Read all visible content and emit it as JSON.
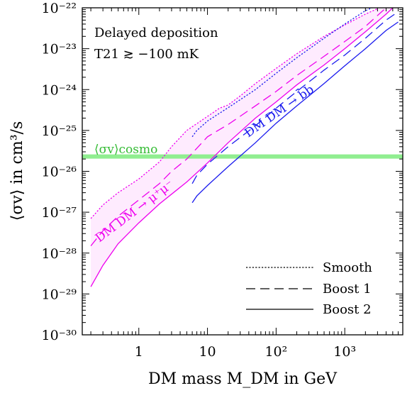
{
  "chart_data": {
    "type": "line",
    "xscale": "log",
    "yscale": "log",
    "xlim": [
      0.15,
      7000
    ],
    "ylim": [
      1e-30,
      1e-22
    ],
    "xlabel": "DM mass M_DM in GeV",
    "ylabel": "⟨σv⟩ in cm³/s",
    "x_ticks": [
      {
        "value": 1,
        "label": "1"
      },
      {
        "value": 10,
        "label": "10"
      },
      {
        "value": 100,
        "label": "10²"
      },
      {
        "value": 1000,
        "label": "10³"
      }
    ],
    "y_ticks": [
      {
        "value": 1e-30,
        "label": "10⁻³⁰"
      },
      {
        "value": 1e-29,
        "label": "10⁻²⁹"
      },
      {
        "value": 1e-28,
        "label": "10⁻²⁸"
      },
      {
        "value": 1e-27,
        "label": "10⁻²⁷"
      },
      {
        "value": 1e-26,
        "label": "10⁻²⁶"
      },
      {
        "value": 1e-25,
        "label": "10⁻²⁵"
      },
      {
        "value": 1e-24,
        "label": "10⁻²⁴"
      },
      {
        "value": 1e-23,
        "label": "10⁻²³"
      },
      {
        "value": 1e-22,
        "label": "10⁻²²"
      }
    ],
    "note_lines": [
      "Delayed deposition",
      "T21 ≳ −100 mK"
    ],
    "cosmo_line": {
      "label": "⟨σv⟩cosmo",
      "value": 2.3e-26,
      "color": "#90ee90",
      "label_color": "#33bb33"
    },
    "annotations": [
      {
        "text": "DM DM → μ⁺μ⁻",
        "color": "#ee00ee"
      },
      {
        "text": "DM DM → b̄b",
        "color": "#1a1aee"
      }
    ],
    "legend": {
      "position": "bottom-right",
      "entries": [
        {
          "label": "Smooth",
          "style": "dotted"
        },
        {
          "label": "Boost 1",
          "style": "dashed"
        },
        {
          "label": "Boost 2",
          "style": "solid"
        }
      ]
    },
    "series": [
      {
        "channel": "mu",
        "style": "dotted",
        "color": "#ee00ee",
        "points": [
          [
            0.2,
            7e-28
          ],
          [
            0.3,
            1.5e-27
          ],
          [
            0.5,
            3e-27
          ],
          [
            1,
            6.5e-27
          ],
          [
            2,
            1.7e-26
          ],
          [
            3,
            4e-26
          ],
          [
            5,
            1e-25
          ],
          [
            10,
            2.2e-25
          ],
          [
            15,
            3.5e-25
          ],
          [
            20,
            4.2e-25
          ],
          [
            30,
            7e-25
          ],
          [
            50,
            1.4e-24
          ],
          [
            100,
            3.3e-24
          ],
          [
            200,
            7.5e-24
          ],
          [
            500,
            2e-23
          ],
          [
            1000,
            3.8e-23
          ],
          [
            2000,
            7e-23
          ],
          [
            3000,
            9.5e-23
          ]
        ]
      },
      {
        "channel": "mu",
        "style": "dashed",
        "color": "#ee00ee",
        "points": [
          [
            0.2,
            1.5e-28
          ],
          [
            0.3,
            3.5e-28
          ],
          [
            0.5,
            8e-28
          ],
          [
            1,
            2e-27
          ],
          [
            2,
            5e-27
          ],
          [
            3,
            1e-26
          ],
          [
            5,
            2e-26
          ],
          [
            10,
            7e-26
          ],
          [
            20,
            1.4e-25
          ],
          [
            50,
            4e-25
          ],
          [
            100,
            9e-25
          ],
          [
            200,
            2.2e-24
          ],
          [
            500,
            6.5e-24
          ],
          [
            1000,
            1.5e-23
          ],
          [
            2000,
            3.5e-23
          ],
          [
            3000,
            6.5e-23
          ],
          [
            4000,
            1e-22
          ]
        ]
      },
      {
        "channel": "mu",
        "style": "solid",
        "color": "#ee00ee",
        "points": [
          [
            0.2,
            1.5e-29
          ],
          [
            0.3,
            5e-29
          ],
          [
            0.5,
            1.7e-28
          ],
          [
            1,
            5.5e-28
          ],
          [
            2,
            1.6e-27
          ],
          [
            5,
            5.5e-27
          ],
          [
            10,
            1.6e-26
          ],
          [
            20,
            5e-26
          ],
          [
            50,
            2e-25
          ],
          [
            100,
            5e-25
          ],
          [
            200,
            1.3e-24
          ],
          [
            500,
            4e-24
          ],
          [
            1000,
            1e-23
          ],
          [
            2000,
            2.6e-23
          ],
          [
            4000,
            7e-23
          ],
          [
            5000,
            1e-22
          ]
        ]
      },
      {
        "channel": "b",
        "style": "dotted",
        "color": "#1a1aee",
        "points": [
          [
            6,
            7e-26
          ],
          [
            7,
            1e-25
          ],
          [
            10,
            1.7e-25
          ],
          [
            20,
            3.6e-25
          ],
          [
            50,
            1e-24
          ],
          [
            100,
            2.5e-24
          ],
          [
            200,
            6e-24
          ],
          [
            500,
            1.8e-23
          ],
          [
            1000,
            4e-23
          ],
          [
            2000,
            8.5e-23
          ],
          [
            2500,
            1e-22
          ]
        ]
      },
      {
        "channel": "b",
        "style": "dashed",
        "color": "#1a1aee",
        "points": [
          [
            6,
            5e-27
          ],
          [
            7,
            8e-27
          ],
          [
            10,
            1.5e-26
          ],
          [
            20,
            4e-26
          ],
          [
            50,
            1.3e-25
          ],
          [
            100,
            3.5e-25
          ],
          [
            200,
            9e-25
          ],
          [
            500,
            3e-24
          ],
          [
            1000,
            7e-24
          ],
          [
            2000,
            1.8e-23
          ],
          [
            4000,
            5e-23
          ],
          [
            6000,
            8e-23
          ]
        ]
      },
      {
        "channel": "b",
        "style": "solid",
        "color": "#1a1aee",
        "points": [
          [
            6,
            1.7e-27
          ],
          [
            7,
            2.5e-27
          ],
          [
            10,
            4.5e-27
          ],
          [
            20,
            1.3e-26
          ],
          [
            50,
            5e-26
          ],
          [
            100,
            1.5e-25
          ],
          [
            200,
            4e-25
          ],
          [
            500,
            1.4e-24
          ],
          [
            1000,
            3.8e-24
          ],
          [
            2000,
            1e-23
          ],
          [
            4000,
            2.8e-23
          ],
          [
            6000,
            4.5e-23
          ]
        ]
      }
    ]
  }
}
